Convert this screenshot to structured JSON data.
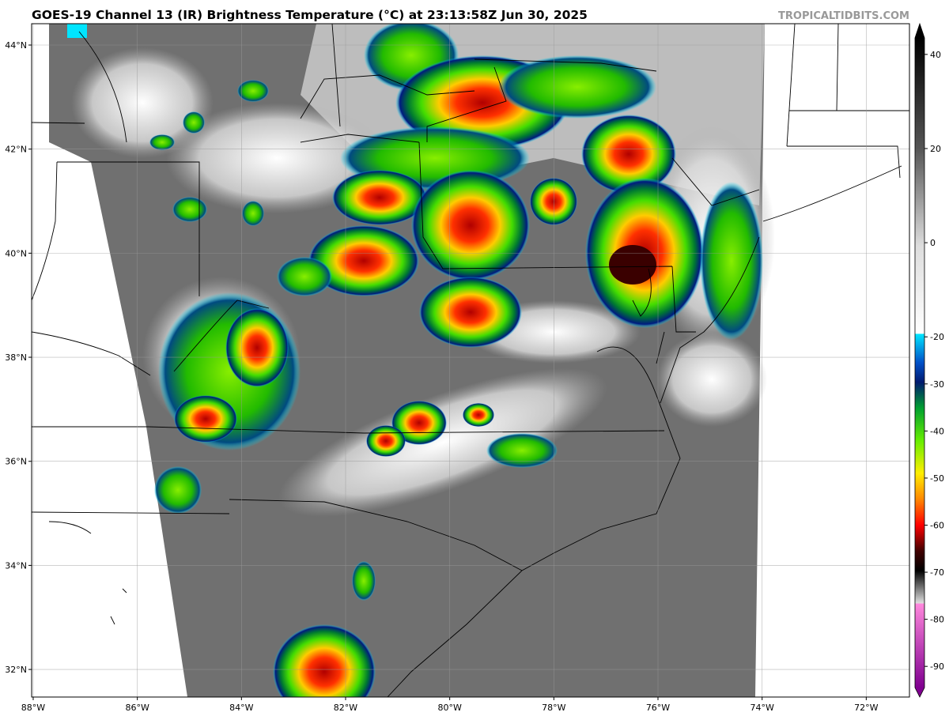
{
  "map": {
    "title": "GOES-19 Channel 13 (IR) Brightness Temperature (°C) at 23:13:58Z Jun 30, 2025",
    "credit": "TROPICALTIDBITS.COM",
    "lonlim": [
      -88.03,
      -71.17
    ],
    "latlim": [
      31.47,
      44.41
    ],
    "lon_ticks": [
      {
        "value": -88,
        "label": "88°W"
      },
      {
        "value": -86,
        "label": "86°W"
      },
      {
        "value": -84,
        "label": "84°W"
      },
      {
        "value": -82,
        "label": "82°W"
      },
      {
        "value": -80,
        "label": "80°W"
      },
      {
        "value": -78,
        "label": "78°W"
      },
      {
        "value": -76,
        "label": "76°W"
      },
      {
        "value": -74,
        "label": "74°W"
      },
      {
        "value": -72,
        "label": "72°W"
      }
    ],
    "lat_ticks": [
      {
        "value": 44,
        "label": "44°N"
      },
      {
        "value": 42,
        "label": "42°N"
      },
      {
        "value": 40,
        "label": "40°N"
      },
      {
        "value": 38,
        "label": "38°N"
      },
      {
        "value": 36,
        "label": "36°N"
      },
      {
        "value": 34,
        "label": "34°N"
      },
      {
        "value": 32,
        "label": "32°N"
      }
    ],
    "colorbar": {
      "lim": [
        -94.5,
        43.5
      ],
      "ticks": [
        40,
        20,
        0,
        -20,
        -30,
        -40,
        -50,
        -60,
        -70,
        -80,
        -90
      ]
    }
  }
}
